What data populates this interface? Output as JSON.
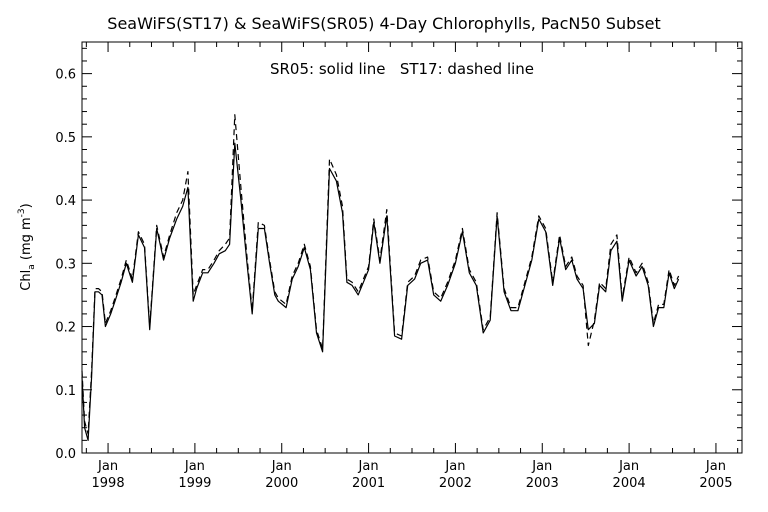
{
  "chart_data": {
    "type": "line",
    "title": "SeaWiFS(ST17) & SeaWiFS(SR05) 4-Day Chlorophylls, PacN50 Subset",
    "annotation": "SR05: solid line   ST17: dashed line",
    "ylabel": "Chl_a (mg m^-3)",
    "ylabel_parts": {
      "main": "Chl",
      "sub": "a",
      "units_open": " (mg m",
      "sup": "-3",
      "units_close": ")"
    },
    "xlabel": "",
    "ylim": [
      0.0,
      0.65
    ],
    "yticks": [
      "0.0",
      "0.1",
      "0.2",
      "0.3",
      "0.4",
      "0.5",
      "0.6"
    ],
    "xlim": [
      1997.7,
      2005.3
    ],
    "xticks": [
      {
        "x": 1998,
        "month": "Jan",
        "year": "1998"
      },
      {
        "x": 1999,
        "month": "Jan",
        "year": "1999"
      },
      {
        "x": 2000,
        "month": "Jan",
        "year": "2000"
      },
      {
        "x": 2001,
        "month": "Jan",
        "year": "2001"
      },
      {
        "x": 2002,
        "month": "Jan",
        "year": "2002"
      },
      {
        "x": 2003,
        "month": "Jan",
        "year": "2003"
      },
      {
        "x": 2004,
        "month": "Jan",
        "year": "2004"
      },
      {
        "x": 2005,
        "month": "Jan",
        "year": "2005"
      }
    ],
    "grid": false,
    "series": [
      {
        "name": "SR05",
        "style": "solid",
        "color": "#000000",
        "points": [
          [
            1997.7,
            0.12
          ],
          [
            1997.73,
            0.04
          ],
          [
            1997.77,
            0.02
          ],
          [
            1997.81,
            0.12
          ],
          [
            1997.85,
            0.255
          ],
          [
            1997.89,
            0.255
          ],
          [
            1997.93,
            0.25
          ],
          [
            1997.97,
            0.2
          ],
          [
            1998.03,
            0.22
          ],
          [
            1998.08,
            0.24
          ],
          [
            1998.15,
            0.27
          ],
          [
            1998.21,
            0.3
          ],
          [
            1998.28,
            0.27
          ],
          [
            1998.35,
            0.345
          ],
          [
            1998.42,
            0.325
          ],
          [
            1998.48,
            0.195
          ],
          [
            1998.56,
            0.355
          ],
          [
            1998.64,
            0.305
          ],
          [
            1998.71,
            0.34
          ],
          [
            1998.79,
            0.37
          ],
          [
            1998.86,
            0.39
          ],
          [
            1998.92,
            0.42
          ],
          [
            1998.98,
            0.24
          ],
          [
            1999.02,
            0.26
          ],
          [
            1999.09,
            0.285
          ],
          [
            1999.15,
            0.285
          ],
          [
            1999.22,
            0.3
          ],
          [
            1999.28,
            0.315
          ],
          [
            1999.35,
            0.32
          ],
          [
            1999.4,
            0.33
          ],
          [
            1999.46,
            0.49
          ],
          [
            1999.53,
            0.4
          ],
          [
            1999.6,
            0.3
          ],
          [
            1999.66,
            0.22
          ],
          [
            1999.73,
            0.355
          ],
          [
            1999.8,
            0.355
          ],
          [
            1999.86,
            0.3
          ],
          [
            1999.92,
            0.25
          ],
          [
            1999.96,
            0.24
          ],
          [
            2000.05,
            0.23
          ],
          [
            2000.12,
            0.275
          ],
          [
            2000.19,
            0.295
          ],
          [
            2000.26,
            0.325
          ],
          [
            2000.33,
            0.29
          ],
          [
            2000.4,
            0.19
          ],
          [
            2000.47,
            0.16
          ],
          [
            2000.55,
            0.45
          ],
          [
            2000.63,
            0.43
          ],
          [
            2000.7,
            0.38
          ],
          [
            2000.75,
            0.27
          ],
          [
            2000.81,
            0.265
          ],
          [
            2000.88,
            0.25
          ],
          [
            2000.94,
            0.27
          ],
          [
            2001.0,
            0.29
          ],
          [
            2001.06,
            0.365
          ],
          [
            2001.13,
            0.3
          ],
          [
            2001.21,
            0.375
          ],
          [
            2001.3,
            0.185
          ],
          [
            2001.38,
            0.18
          ],
          [
            2001.45,
            0.265
          ],
          [
            2001.53,
            0.275
          ],
          [
            2001.6,
            0.3
          ],
          [
            2001.68,
            0.305
          ],
          [
            2001.75,
            0.25
          ],
          [
            2001.83,
            0.24
          ],
          [
            2001.91,
            0.265
          ],
          [
            2002.0,
            0.3
          ],
          [
            2002.08,
            0.35
          ],
          [
            2002.16,
            0.285
          ],
          [
            2002.24,
            0.265
          ],
          [
            2002.32,
            0.19
          ],
          [
            2002.4,
            0.21
          ],
          [
            2002.48,
            0.375
          ],
          [
            2002.56,
            0.255
          ],
          [
            2002.64,
            0.225
          ],
          [
            2002.72,
            0.225
          ],
          [
            2002.8,
            0.265
          ],
          [
            2002.88,
            0.305
          ],
          [
            2002.96,
            0.37
          ],
          [
            2003.04,
            0.35
          ],
          [
            2003.12,
            0.265
          ],
          [
            2003.2,
            0.34
          ],
          [
            2003.27,
            0.29
          ],
          [
            2003.34,
            0.305
          ],
          [
            2003.4,
            0.275
          ],
          [
            2003.47,
            0.26
          ],
          [
            2003.53,
            0.195
          ],
          [
            2003.6,
            0.205
          ],
          [
            2003.66,
            0.265
          ],
          [
            2003.73,
            0.255
          ],
          [
            2003.79,
            0.32
          ],
          [
            2003.86,
            0.335
          ],
          [
            2003.92,
            0.24
          ],
          [
            2004.0,
            0.305
          ],
          [
            2004.08,
            0.28
          ],
          [
            2004.15,
            0.295
          ],
          [
            2004.22,
            0.265
          ],
          [
            2004.28,
            0.2
          ],
          [
            2004.34,
            0.23
          ],
          [
            2004.4,
            0.23
          ],
          [
            2004.46,
            0.285
          ],
          [
            2004.52,
            0.26
          ],
          [
            2004.57,
            0.275
          ]
        ]
      },
      {
        "name": "ST17",
        "style": "dashed",
        "color": "#000000",
        "points": [
          [
            1997.7,
            0.13
          ],
          [
            1997.73,
            0.05
          ],
          [
            1997.77,
            0.03
          ],
          [
            1997.81,
            0.13
          ],
          [
            1997.85,
            0.26
          ],
          [
            1997.89,
            0.26
          ],
          [
            1997.93,
            0.255
          ],
          [
            1997.97,
            0.205
          ],
          [
            1998.03,
            0.225
          ],
          [
            1998.08,
            0.245
          ],
          [
            1998.15,
            0.275
          ],
          [
            1998.21,
            0.305
          ],
          [
            1998.28,
            0.275
          ],
          [
            1998.35,
            0.35
          ],
          [
            1998.42,
            0.33
          ],
          [
            1998.48,
            0.2
          ],
          [
            1998.56,
            0.36
          ],
          [
            1998.64,
            0.31
          ],
          [
            1998.71,
            0.345
          ],
          [
            1998.79,
            0.38
          ],
          [
            1998.86,
            0.4
          ],
          [
            1998.92,
            0.445
          ],
          [
            1998.98,
            0.25
          ],
          [
            1999.02,
            0.265
          ],
          [
            1999.09,
            0.29
          ],
          [
            1999.15,
            0.29
          ],
          [
            1999.22,
            0.305
          ],
          [
            1999.28,
            0.32
          ],
          [
            1999.35,
            0.33
          ],
          [
            1999.4,
            0.34
          ],
          [
            1999.46,
            0.535
          ],
          [
            1999.53,
            0.42
          ],
          [
            1999.6,
            0.31
          ],
          [
            1999.66,
            0.225
          ],
          [
            1999.73,
            0.365
          ],
          [
            1999.8,
            0.36
          ],
          [
            1999.86,
            0.305
          ],
          [
            1999.92,
            0.255
          ],
          [
            1999.96,
            0.245
          ],
          [
            2000.05,
            0.235
          ],
          [
            2000.12,
            0.28
          ],
          [
            2000.19,
            0.3
          ],
          [
            2000.26,
            0.33
          ],
          [
            2000.33,
            0.295
          ],
          [
            2000.4,
            0.195
          ],
          [
            2000.47,
            0.165
          ],
          [
            2000.55,
            0.465
          ],
          [
            2000.63,
            0.44
          ],
          [
            2000.7,
            0.39
          ],
          [
            2000.75,
            0.275
          ],
          [
            2000.81,
            0.27
          ],
          [
            2000.88,
            0.255
          ],
          [
            2000.94,
            0.275
          ],
          [
            2001.0,
            0.295
          ],
          [
            2001.06,
            0.37
          ],
          [
            2001.13,
            0.305
          ],
          [
            2001.21,
            0.385
          ],
          [
            2001.3,
            0.19
          ],
          [
            2001.38,
            0.185
          ],
          [
            2001.45,
            0.27
          ],
          [
            2001.53,
            0.28
          ],
          [
            2001.6,
            0.305
          ],
          [
            2001.68,
            0.31
          ],
          [
            2001.75,
            0.255
          ],
          [
            2001.83,
            0.245
          ],
          [
            2001.91,
            0.27
          ],
          [
            2002.0,
            0.305
          ],
          [
            2002.08,
            0.355
          ],
          [
            2002.16,
            0.29
          ],
          [
            2002.24,
            0.27
          ],
          [
            2002.32,
            0.195
          ],
          [
            2002.4,
            0.215
          ],
          [
            2002.48,
            0.38
          ],
          [
            2002.56,
            0.26
          ],
          [
            2002.64,
            0.23
          ],
          [
            2002.72,
            0.23
          ],
          [
            2002.8,
            0.27
          ],
          [
            2002.88,
            0.31
          ],
          [
            2002.96,
            0.375
          ],
          [
            2003.04,
            0.355
          ],
          [
            2003.12,
            0.27
          ],
          [
            2003.2,
            0.345
          ],
          [
            2003.27,
            0.295
          ],
          [
            2003.34,
            0.31
          ],
          [
            2003.4,
            0.28
          ],
          [
            2003.47,
            0.265
          ],
          [
            2003.53,
            0.17
          ],
          [
            2003.6,
            0.21
          ],
          [
            2003.66,
            0.27
          ],
          [
            2003.73,
            0.26
          ],
          [
            2003.79,
            0.33
          ],
          [
            2003.86,
            0.345
          ],
          [
            2003.92,
            0.245
          ],
          [
            2004.0,
            0.31
          ],
          [
            2004.08,
            0.285
          ],
          [
            2004.15,
            0.3
          ],
          [
            2004.22,
            0.27
          ],
          [
            2004.28,
            0.205
          ],
          [
            2004.34,
            0.235
          ],
          [
            2004.4,
            0.235
          ],
          [
            2004.46,
            0.29
          ],
          [
            2004.52,
            0.265
          ],
          [
            2004.57,
            0.28
          ]
        ]
      }
    ]
  }
}
